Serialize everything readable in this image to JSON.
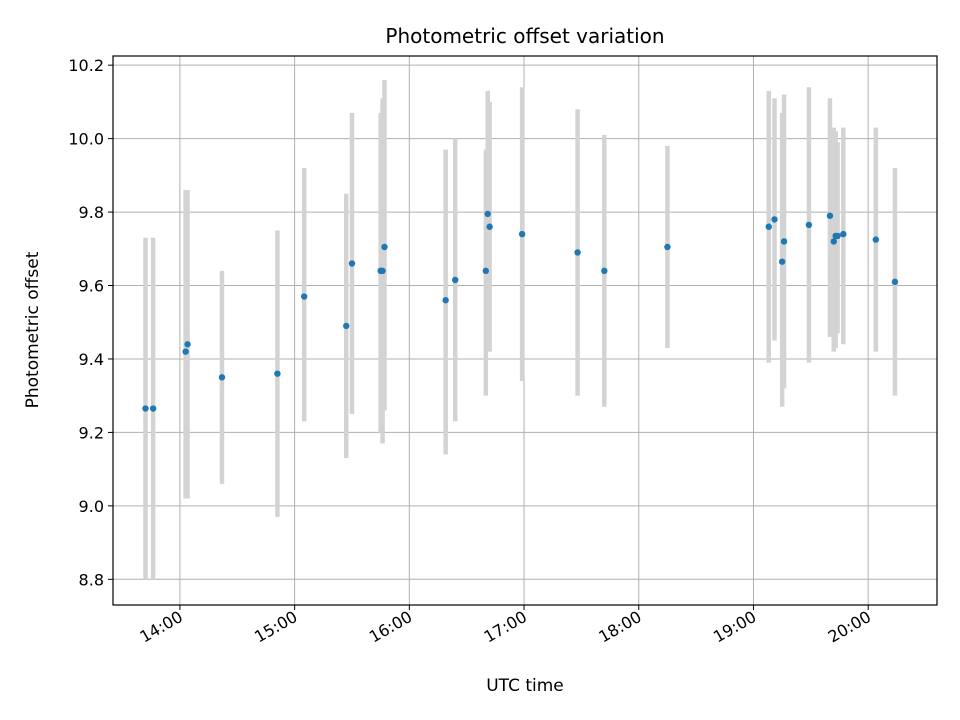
{
  "chart_data": {
    "type": "scatter",
    "title": "Photometric offset variation",
    "xlabel": "UTC time",
    "ylabel": "Photometric offset",
    "x_unit": "UTC time of day",
    "xlim": [
      "13:25",
      "20:36"
    ],
    "ylim": [
      8.73,
      10.225
    ],
    "x_ticks": [
      "14:00",
      "15:00",
      "16:00",
      "17:00",
      "18:00",
      "19:00",
      "20:00"
    ],
    "y_ticks": [
      8.8,
      9.0,
      9.2,
      9.4,
      9.6,
      9.8,
      10.0,
      10.2
    ],
    "y_tick_labels": [
      "8.8",
      "9.0",
      "9.2",
      "9.4",
      "9.6",
      "9.8",
      "10.0",
      "10.2"
    ],
    "x_tick_rotation": "30 degrees",
    "grid": true,
    "legend": "none",
    "colors": {
      "point": "#1f77b4",
      "errorbar": "#d3d3d3",
      "grid": "#b0b0b0",
      "axes": "#000000"
    },
    "points": [
      {
        "time": "13:42",
        "y": 9.265,
        "yerr_low": 8.8,
        "yerr_high": 9.73
      },
      {
        "time": "13:46",
        "y": 9.265,
        "yerr_low": 8.8,
        "yerr_high": 9.73
      },
      {
        "time": "14:03",
        "y": 9.42,
        "yerr_low": 9.02,
        "yerr_high": 9.86
      },
      {
        "time": "14:04",
        "y": 9.44,
        "yerr_low": 9.02,
        "yerr_high": 9.86
      },
      {
        "time": "14:22",
        "y": 9.35,
        "yerr_low": 9.06,
        "yerr_high": 9.64
      },
      {
        "time": "14:51",
        "y": 9.36,
        "yerr_low": 8.97,
        "yerr_high": 9.75
      },
      {
        "time": "15:05",
        "y": 9.57,
        "yerr_low": 9.23,
        "yerr_high": 9.92
      },
      {
        "time": "15:27",
        "y": 9.49,
        "yerr_low": 9.13,
        "yerr_high": 9.85
      },
      {
        "time": "15:30",
        "y": 9.66,
        "yerr_low": 9.25,
        "yerr_high": 10.07
      },
      {
        "time": "15:45",
        "y": 9.64,
        "yerr_low": 9.2,
        "yerr_high": 10.07
      },
      {
        "time": "15:46",
        "y": 9.64,
        "yerr_low": 9.17,
        "yerr_high": 10.11
      },
      {
        "time": "15:47",
        "y": 9.705,
        "yerr_low": 9.26,
        "yerr_high": 10.16
      },
      {
        "time": "16:19",
        "y": 9.56,
        "yerr_low": 9.14,
        "yerr_high": 9.97
      },
      {
        "time": "16:24",
        "y": 9.615,
        "yerr_low": 9.23,
        "yerr_high": 10.0
      },
      {
        "time": "16:40",
        "y": 9.64,
        "yerr_low": 9.3,
        "yerr_high": 9.97
      },
      {
        "time": "16:41",
        "y": 9.795,
        "yerr_low": 9.42,
        "yerr_high": 10.13
      },
      {
        "time": "16:42",
        "y": 9.76,
        "yerr_low": 9.42,
        "yerr_high": 10.1
      },
      {
        "time": "16:59",
        "y": 9.74,
        "yerr_low": 9.34,
        "yerr_high": 10.14
      },
      {
        "time": "17:28",
        "y": 9.69,
        "yerr_low": 9.3,
        "yerr_high": 10.08
      },
      {
        "time": "17:42",
        "y": 9.64,
        "yerr_low": 9.27,
        "yerr_high": 10.01
      },
      {
        "time": "18:15",
        "y": 9.705,
        "yerr_low": 9.43,
        "yerr_high": 9.98
      },
      {
        "time": "19:08",
        "y": 9.76,
        "yerr_low": 9.39,
        "yerr_high": 10.13
      },
      {
        "time": "19:11",
        "y": 9.78,
        "yerr_low": 9.45,
        "yerr_high": 10.11
      },
      {
        "time": "19:15",
        "y": 9.665,
        "yerr_low": 9.27,
        "yerr_high": 10.07
      },
      {
        "time": "19:16",
        "y": 9.72,
        "yerr_low": 9.32,
        "yerr_high": 10.12
      },
      {
        "time": "19:29",
        "y": 9.765,
        "yerr_low": 9.39,
        "yerr_high": 10.14
      },
      {
        "time": "19:40",
        "y": 9.79,
        "yerr_low": 9.46,
        "yerr_high": 10.11
      },
      {
        "time": "19:42",
        "y": 9.72,
        "yerr_low": 9.42,
        "yerr_high": 10.03
      },
      {
        "time": "19:43",
        "y": 9.735,
        "yerr_low": 9.43,
        "yerr_high": 10.02
      },
      {
        "time": "19:44",
        "y": 9.735,
        "yerr_low": 9.47,
        "yerr_high": 9.99
      },
      {
        "time": "19:47",
        "y": 9.74,
        "yerr_low": 9.44,
        "yerr_high": 10.03
      },
      {
        "time": "20:04",
        "y": 9.725,
        "yerr_low": 9.42,
        "yerr_high": 10.03
      },
      {
        "time": "20:14",
        "y": 9.61,
        "yerr_low": 9.3,
        "yerr_high": 9.92
      }
    ]
  }
}
